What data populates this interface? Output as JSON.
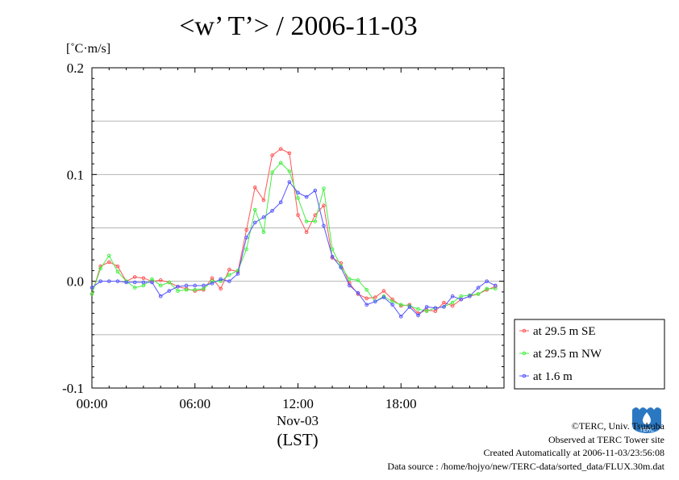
{
  "title": "<w’ T’> / 2006-11-03",
  "units_label": "[˚C·m/s]",
  "x_date_label": "Nov-03",
  "x_axis_label": "(LST)",
  "logo_text": "TERC",
  "credits": {
    "copyright": "©TERC, Univ. Tsukuba",
    "observed": "Observed at TERC Tower site",
    "created": "Created Automatically at 2006-11-03/23:56:08",
    "source": "Data source : /home/hojyo/new/TERC-data/sorted_data/FLUX.30m.dat"
  },
  "chart_data": {
    "type": "line",
    "title": "<w’ T’> / 2006-11-03",
    "ylabel": "[˚C·m/s]",
    "xlabel": "(LST)",
    "xlim": [
      0,
      24
    ],
    "ylim": [
      -0.1,
      0.2
    ],
    "x_ticks": [
      {
        "value": 0,
        "label": "00:00"
      },
      {
        "value": 6,
        "label": "06:00"
      },
      {
        "value": 12,
        "label": "12:00"
      },
      {
        "value": 18,
        "label": "18:00"
      }
    ],
    "y_ticks": [
      {
        "value": -0.1,
        "label": "-0.1"
      },
      {
        "value": 0.0,
        "label": "0.0"
      },
      {
        "value": 0.1,
        "label": "0.1"
      },
      {
        "value": 0.2,
        "label": "0.2"
      }
    ],
    "grid": true,
    "legend_position": "bottom-right outside",
    "x": [
      0,
      0.5,
      1,
      1.5,
      2,
      2.5,
      3,
      3.5,
      4,
      4.5,
      5,
      5.5,
      6,
      6.5,
      7,
      7.5,
      8,
      8.5,
      9,
      9.5,
      10,
      10.5,
      11,
      11.5,
      12,
      12.5,
      13,
      13.5,
      14,
      14.5,
      15,
      15.5,
      16,
      16.5,
      17,
      17.5,
      18,
      18.5,
      19,
      19.5,
      20,
      20.5,
      21,
      21.5,
      22,
      22.5,
      23,
      23.5
    ],
    "series": [
      {
        "name": "at 29.5 m SE",
        "color": "#ff5555",
        "values": [
          -0.012,
          0.014,
          0.018,
          0.014,
          0.0,
          0.004,
          0.003,
          0.0,
          0.001,
          -0.001,
          -0.005,
          -0.007,
          -0.009,
          -0.008,
          0.003,
          -0.007,
          0.011,
          0.009,
          0.048,
          0.088,
          0.076,
          0.118,
          0.124,
          0.12,
          0.062,
          0.046,
          0.062,
          0.071,
          0.022,
          0.017,
          -0.002,
          -0.012,
          -0.016,
          -0.015,
          -0.009,
          -0.017,
          -0.023,
          -0.022,
          -0.03,
          -0.027,
          -0.028,
          -0.02,
          -0.023,
          -0.017,
          -0.014,
          -0.012,
          -0.008,
          -0.005
        ]
      },
      {
        "name": "at 29.5 m NW",
        "color": "#44ee44",
        "values": [
          -0.012,
          0.012,
          0.024,
          0.009,
          0.0,
          -0.006,
          -0.004,
          0.002,
          -0.004,
          -0.001,
          -0.009,
          -0.008,
          -0.008,
          -0.007,
          0.0,
          0.0,
          0.006,
          0.01,
          0.03,
          0.067,
          0.046,
          0.102,
          0.111,
          0.103,
          0.078,
          0.056,
          0.056,
          0.087,
          0.03,
          0.014,
          0.002,
          0.001,
          -0.008,
          -0.019,
          -0.014,
          -0.019,
          -0.022,
          -0.023,
          -0.026,
          -0.028,
          -0.025,
          -0.024,
          -0.02,
          -0.014,
          -0.013,
          -0.012,
          -0.007,
          -0.007
        ]
      },
      {
        "name": "at 1.6 m",
        "color": "#5555ff",
        "values": [
          -0.006,
          0.0,
          0.0,
          0.0,
          -0.001,
          -0.001,
          -0.001,
          -0.001,
          -0.014,
          -0.009,
          -0.005,
          -0.004,
          -0.004,
          -0.004,
          -0.002,
          0.002,
          0.0,
          0.007,
          0.041,
          0.055,
          0.06,
          0.066,
          0.074,
          0.093,
          0.083,
          0.079,
          0.085,
          0.052,
          0.023,
          0.013,
          -0.004,
          -0.011,
          -0.022,
          -0.019,
          -0.015,
          -0.022,
          -0.033,
          -0.024,
          -0.032,
          -0.024,
          -0.025,
          -0.024,
          -0.014,
          -0.017,
          -0.014,
          -0.006,
          0.0,
          -0.004
        ]
      }
    ]
  }
}
